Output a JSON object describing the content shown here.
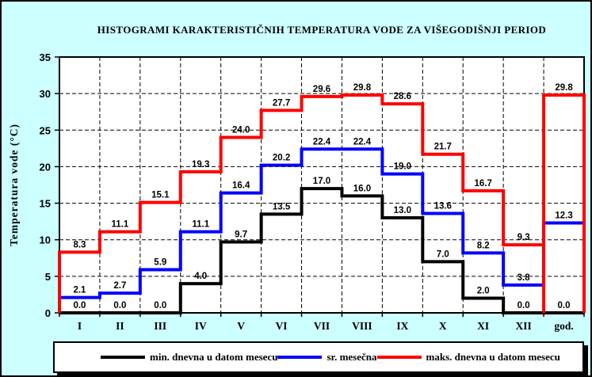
{
  "chart_data": {
    "type": "step-line",
    "title": "HISTOGRAMI KARAKTERISTIČNIH TEMPERATURA VODE ZA VIŠEGODIŠNJI PERIOD",
    "ylabel": "Temperatura vode (°C)",
    "xlabel": "",
    "ylim": [
      0,
      35
    ],
    "ytick_step": 5,
    "y_ticks": [
      0,
      5,
      10,
      15,
      20,
      25,
      30,
      35
    ],
    "grid": true,
    "grid_style": "dashed",
    "legend_position": "bottom",
    "plot_background": "#FFFFFF",
    "page_background": "#CCFFFF",
    "categories": [
      "I",
      "II",
      "III",
      "IV",
      "V",
      "VI",
      "VII",
      "VIII",
      "IX",
      "X",
      "XI",
      "XII",
      "god."
    ],
    "series": [
      {
        "id": "min",
        "name": "min. dnevna u datom mesecu",
        "color": "#000000",
        "values": [
          0.0,
          0.0,
          0.0,
          4.0,
          9.7,
          13.5,
          17.0,
          16.0,
          13.0,
          7.0,
          2.0,
          0.0,
          0.0
        ],
        "start_at_zero": false,
        "end_at_zero": false,
        "annual_bar": false
      },
      {
        "id": "mean",
        "name": "sr. mesečna",
        "color": "#0000FF",
        "values": [
          2.1,
          2.7,
          5.9,
          11.1,
          16.4,
          20.2,
          22.4,
          22.4,
          19.0,
          13.6,
          8.2,
          3.8,
          12.3
        ],
        "start_at_zero": false,
        "end_at_zero": false,
        "annual_bar": false
      },
      {
        "id": "max",
        "name": "maks. dnevna u datom mesecu",
        "color": "#FF0000",
        "values": [
          8.3,
          11.1,
          15.1,
          19.3,
          24.0,
          27.7,
          29.6,
          29.8,
          28.6,
          21.7,
          16.7,
          9.3,
          29.8
        ],
        "start_at_zero": true,
        "end_at_zero": true,
        "annual_bar": true
      }
    ]
  }
}
